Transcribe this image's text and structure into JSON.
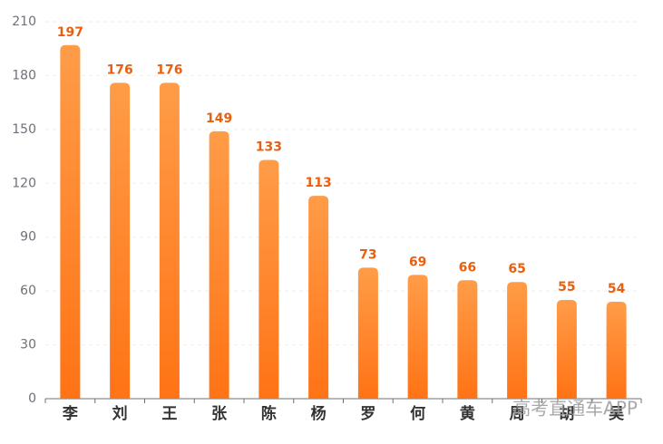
{
  "chart_data": {
    "type": "bar",
    "categories": [
      "李",
      "刘",
      "王",
      "张",
      "陈",
      "杨",
      "罗",
      "何",
      "黄",
      "周",
      "胡",
      "吴"
    ],
    "values": [
      197,
      176,
      176,
      149,
      133,
      113,
      73,
      69,
      66,
      65,
      55,
      54
    ],
    "color_top": "#ff9c48",
    "color_bottom": "#ff7315",
    "label_color": "#e8600f",
    "ylim": [
      0,
      210
    ],
    "yticks": [
      0,
      30,
      60,
      90,
      120,
      150,
      180,
      210
    ],
    "grid": true,
    "watermark": "高考直通车APP"
  }
}
